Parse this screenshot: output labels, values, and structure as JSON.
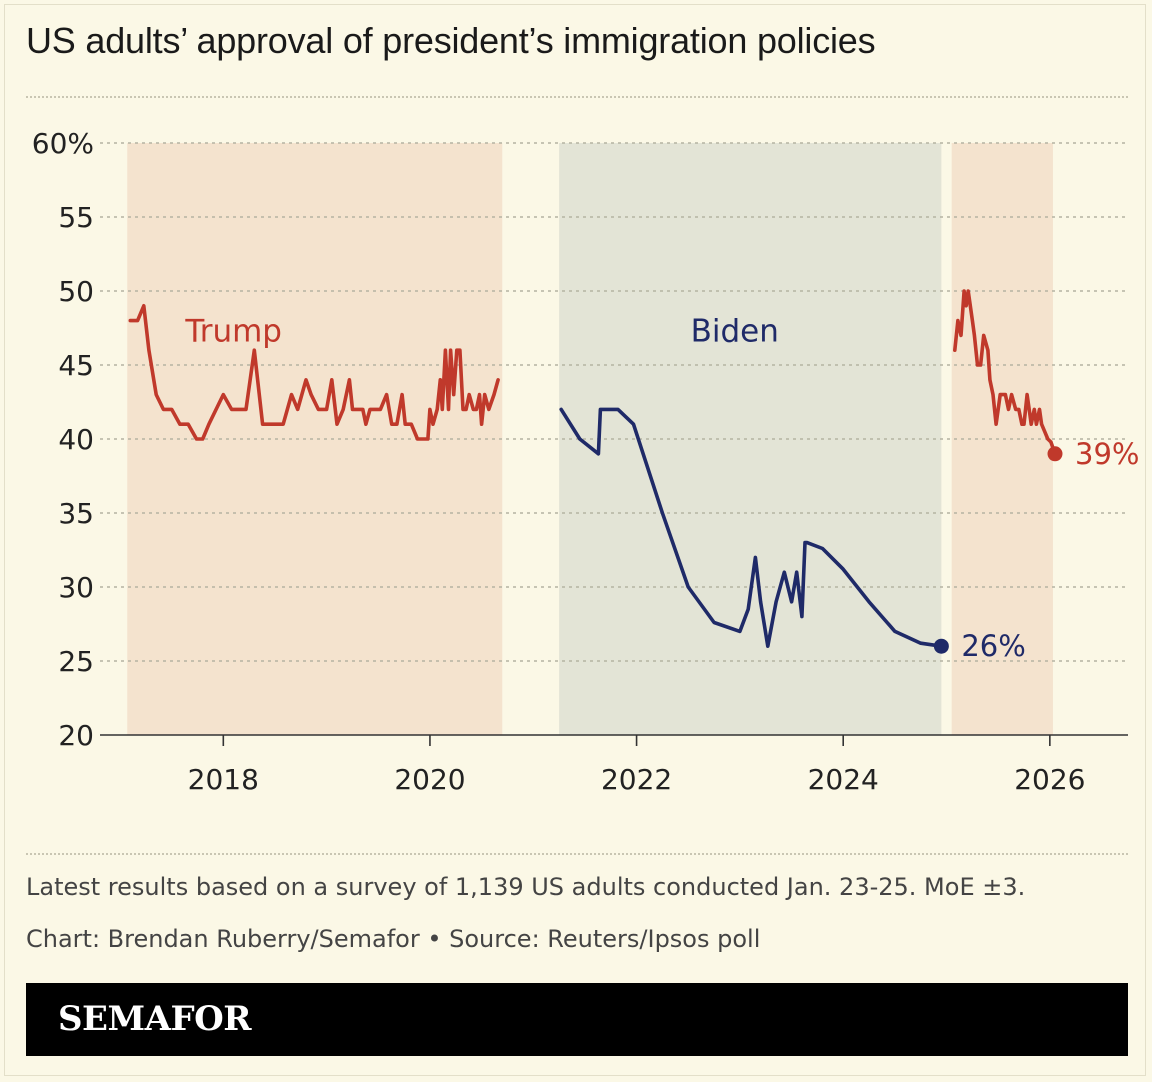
{
  "title": "US adults’ approval of president’s immigration policies",
  "footnote": "Latest results based on a survey of 1,139 US adults conducted Jan. 23-25. MoE ±3.",
  "credit": "Chart: Brendan Ruberry/Semafor • Source: Reuters/Ipsos poll",
  "brand": "SEMAFOR",
  "colors": {
    "background": "#fbf8e6",
    "trump": "#c0392b",
    "biden": "#1f2a68",
    "trump_band": "#f4e3ce",
    "biden_band": "#e3e4d6",
    "grid": "#b5b3a2"
  },
  "chart_data": {
    "type": "line",
    "xlim": [
      2017.0,
      2026.35
    ],
    "ylim": [
      20,
      60
    ],
    "yticks": [
      {
        "value": 60,
        "label": "60%"
      },
      {
        "value": 55,
        "label": "55"
      },
      {
        "value": 50,
        "label": "50"
      },
      {
        "value": 45,
        "label": "45"
      },
      {
        "value": 40,
        "label": "40"
      },
      {
        "value": 35,
        "label": "35"
      },
      {
        "value": 30,
        "label": "30"
      },
      {
        "value": 25,
        "label": "25"
      },
      {
        "value": 20,
        "label": "20"
      }
    ],
    "xticks": [
      {
        "value": 2018,
        "label": "2018"
      },
      {
        "value": 2020,
        "label": "2020"
      },
      {
        "value": 2022,
        "label": "2022"
      },
      {
        "value": 2024,
        "label": "2024"
      },
      {
        "value": 2026,
        "label": "2026"
      }
    ],
    "bands": [
      {
        "name": "Trump",
        "from": 2017.07,
        "to": 2020.7,
        "color": "#f4e3ce",
        "label": "Trump",
        "label_x": 2018.1,
        "label_y": 46.6,
        "label_color": "#c0392b"
      },
      {
        "name": "Biden",
        "from": 2021.25,
        "to": 2024.95,
        "color": "#e3e4d6",
        "label": "Biden",
        "label_x": 2022.95,
        "label_y": 46.6,
        "label_color": "#1f2a68"
      },
      {
        "name": "Trump",
        "from": 2025.05,
        "to": 2026.03,
        "color": "#f4e3ce",
        "label": "",
        "label_x": 0,
        "label_y": 0,
        "label_color": "#c0392b"
      }
    ],
    "series": [
      {
        "name": "Trump",
        "color": "#c0392b",
        "x": [
          2017.1,
          2017.17,
          2017.23,
          2017.28,
          2017.35,
          2017.42,
          2017.5,
          2017.58,
          2017.66,
          2017.74,
          2017.8,
          2017.86,
          2017.93,
          2018.0,
          2018.08,
          2018.15,
          2018.22,
          2018.3,
          2018.38,
          2018.4,
          2018.43,
          2018.46,
          2018.5,
          2018.58,
          2018.66,
          2018.72,
          2018.8,
          2018.85,
          2018.92,
          2019.0,
          2019.05,
          2019.1,
          2019.16,
          2019.22,
          2019.25,
          2019.3,
          2019.35,
          2019.38,
          2019.42,
          2019.46,
          2019.52,
          2019.58,
          2019.63,
          2019.68,
          2019.73,
          2019.76,
          2019.82,
          2019.88,
          2019.95,
          2019.98,
          2020.0,
          2020.03,
          2020.07,
          2020.1,
          2020.12,
          2020.15,
          2020.18,
          2020.2,
          2020.23,
          2020.26,
          2020.29,
          2020.32,
          2020.35,
          2020.38,
          2020.42,
          2020.45,
          2020.48,
          2020.5,
          2020.53,
          2020.57,
          2020.62,
          2020.66
        ],
        "y": [
          48,
          48,
          49,
          46,
          43,
          42,
          42,
          41,
          41,
          40,
          40,
          41,
          42,
          43,
          42,
          42,
          42,
          46,
          41,
          41,
          41,
          41,
          41,
          41,
          43,
          42,
          44,
          43,
          42,
          42,
          44,
          41,
          42,
          44,
          42,
          42,
          42,
          41,
          42,
          42,
          42,
          43,
          41,
          41,
          43,
          41,
          41,
          40,
          40,
          40,
          42,
          41,
          42,
          44,
          42,
          46,
          42,
          46,
          43,
          46,
          46,
          42,
          42,
          43,
          42,
          42,
          43,
          41,
          43,
          42,
          43,
          44
        ]
      },
      {
        "name": "Biden",
        "color": "#1f2a68",
        "x": [
          2021.27,
          2021.45,
          2021.63,
          2021.65,
          2021.82,
          2021.97,
          2022.25,
          2022.5,
          2022.75,
          2023.0,
          2023.08,
          2023.15,
          2023.2,
          2023.27,
          2023.35,
          2023.43,
          2023.5,
          2023.55,
          2023.6,
          2023.63,
          2023.65,
          2023.8,
          2024.0,
          2024.25,
          2024.5,
          2024.75,
          2024.95
        ],
        "y": [
          42,
          40,
          39,
          42,
          42,
          41,
          35,
          30,
          27.6,
          27,
          28.5,
          32,
          29,
          26,
          29,
          31,
          29,
          31,
          28,
          33,
          33,
          32.6,
          31.2,
          29,
          27,
          26.2,
          26
        ]
      },
      {
        "name": "Trump",
        "color": "#c0392b",
        "x": [
          2025.08,
          2025.11,
          2025.14,
          2025.17,
          2025.19,
          2025.21,
          2025.23,
          2025.25,
          2025.27,
          2025.3,
          2025.33,
          2025.36,
          2025.4,
          2025.42,
          2025.45,
          2025.48,
          2025.52,
          2025.55,
          2025.57,
          2025.6,
          2025.63,
          2025.67,
          2025.7,
          2025.73,
          2025.75,
          2025.78,
          2025.8,
          2025.82,
          2025.85,
          2025.87,
          2025.9,
          2025.92,
          2025.95,
          2025.98,
          2026.01,
          2026.05
        ],
        "y": [
          46,
          48,
          47,
          50,
          49,
          50,
          49,
          48,
          47,
          45,
          45,
          47,
          46,
          44,
          43,
          41,
          43,
          43,
          43,
          42,
          43,
          42,
          42,
          41,
          41,
          43,
          42,
          41,
          42,
          41,
          42,
          41,
          40.5,
          40,
          39.8,
          39
        ]
      }
    ],
    "end_labels": [
      {
        "series": "Biden",
        "x": 2024.95,
        "y": 26,
        "label": "26%",
        "color": "#1f2a68"
      },
      {
        "series": "Trump",
        "x": 2026.05,
        "y": 39,
        "label": "39%",
        "color": "#c0392b"
      }
    ],
    "grid": true
  }
}
